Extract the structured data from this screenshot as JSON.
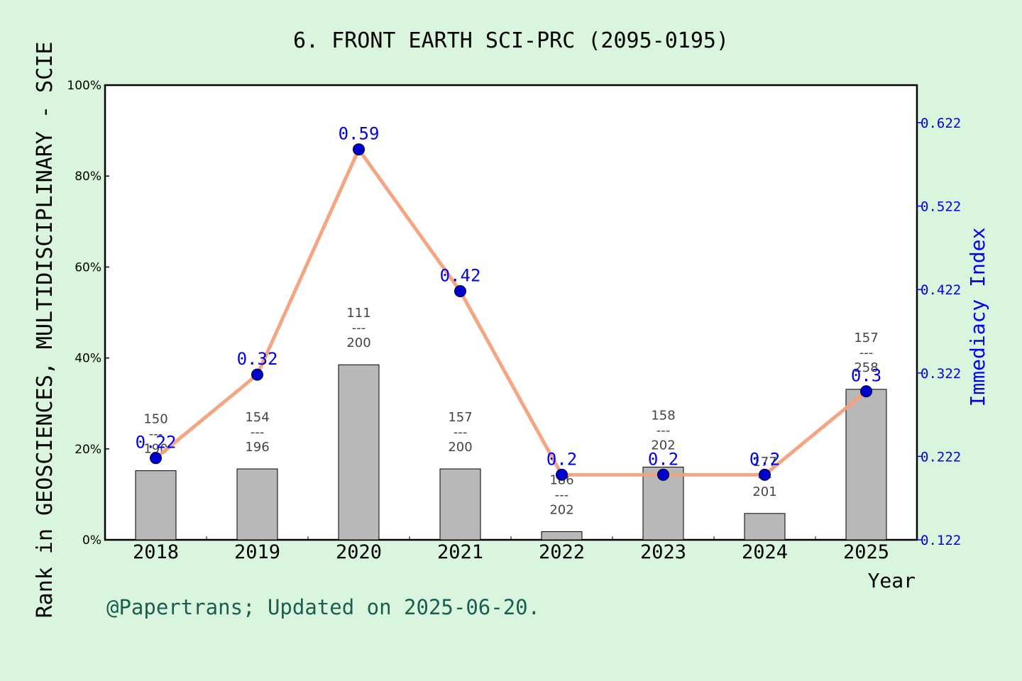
{
  "chart_data": {
    "type": "bar+line",
    "title": "6. FRONT EARTH SCI-PRC (2095-0195)",
    "xlabel": "Year",
    "ylabel_left": "Rank in GEOSCIENCES, MULTIDISCIPLINARY - SCIE",
    "ylabel_right": "Immediacy Index",
    "categories": [
      "2018",
      "2019",
      "2020",
      "2021",
      "2022",
      "2023",
      "2024",
      "2025"
    ],
    "left_axis": {
      "ticks": [
        "0%",
        "20%",
        "40%",
        "60%",
        "80%",
        "100%"
      ],
      "ylim": [
        0,
        100
      ]
    },
    "right_axis": {
      "ticks": [
        "0.122",
        "0.222",
        "0.322",
        "0.422",
        "0.522",
        "0.622"
      ],
      "ylim": [
        0.122,
        0.667
      ]
    },
    "bars": {
      "values_pct": [
        15.2,
        15.6,
        38.5,
        15.6,
        1.8,
        16.0,
        5.8,
        33.1
      ],
      "rank": [
        "150",
        "154",
        "111",
        "157",
        "186",
        "158",
        "177",
        "157"
      ],
      "total": [
        "190",
        "196",
        "200",
        "200",
        "202",
        "202",
        "201",
        "258"
      ],
      "separator": "---",
      "color": "#b8b8b8"
    },
    "line": {
      "values": [
        0.22,
        0.32,
        0.59,
        0.42,
        0.2,
        0.2,
        0.2,
        0.3
      ],
      "labels": [
        "0.22",
        "0.32",
        "0.59",
        "0.42",
        "0.2",
        "0.2",
        "0.2",
        "0.3"
      ],
      "line_color": "#f4a07a",
      "marker_color": "#0000cc"
    },
    "footer": "@Papertrans; Updated on 2025-06-20."
  }
}
